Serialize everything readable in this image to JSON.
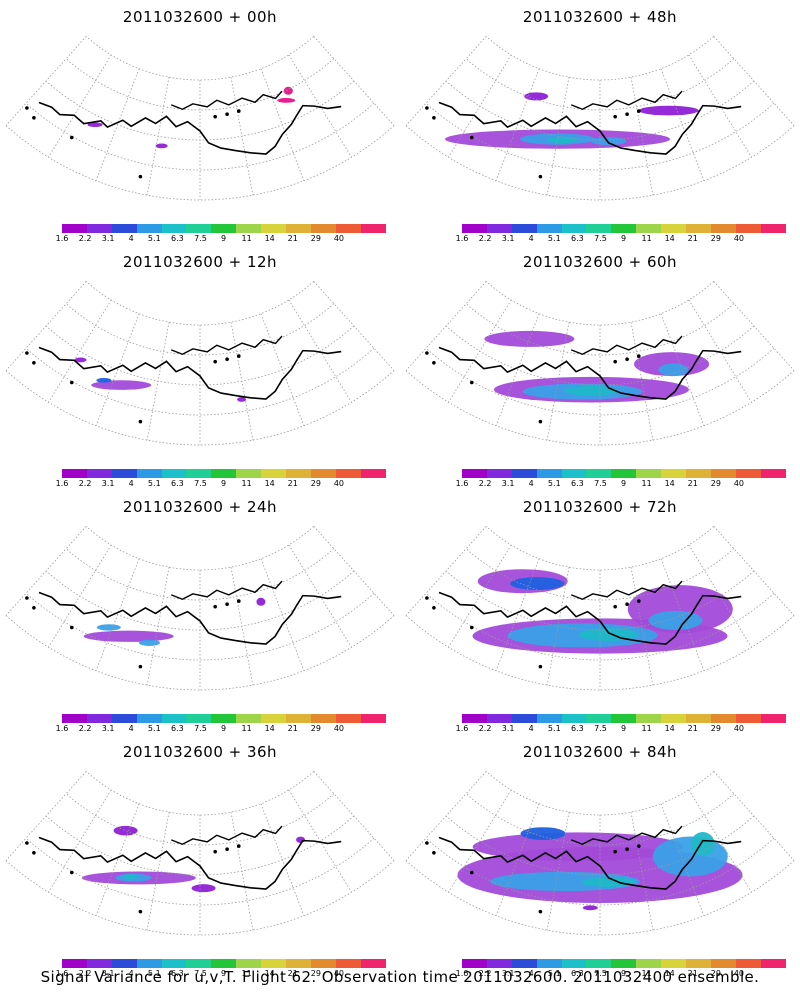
{
  "panels": [
    {
      "title": "2011032600 + 00h",
      "blobs": [
        [
          -0.62,
          0.15,
          0.05,
          0.03,
          "#8f1fd6"
        ],
        [
          -0.22,
          0.15,
          0.04,
          0.03,
          "#8f1fd6"
        ],
        [
          0.58,
          -0.35,
          0.06,
          0.03,
          "#e8108a"
        ],
        [
          0.62,
          -0.48,
          0.03,
          0.05,
          "#e8108a"
        ]
      ]
    },
    {
      "title": "2011032600 + 12h",
      "blobs": [
        [
          -0.45,
          0.22,
          0.2,
          0.06,
          "#a24ad9"
        ],
        [
          -0.55,
          0.25,
          0.05,
          0.03,
          "#1f60e0"
        ],
        [
          -0.72,
          0.12,
          0.04,
          0.03,
          "#8f1fd6"
        ],
        [
          0.23,
          0.3,
          0.03,
          0.03,
          "#8f1fd6"
        ]
      ]
    },
    {
      "title": "2011032600 + 24h",
      "blobs": [
        [
          -0.4,
          0.28,
          0.3,
          0.07,
          "#a24ad9"
        ],
        [
          -0.52,
          0.25,
          0.08,
          0.04,
          "#3aa0e8"
        ],
        [
          -0.28,
          0.3,
          0.07,
          0.04,
          "#3aa0e8"
        ],
        [
          0.4,
          -0.32,
          0.03,
          0.05,
          "#8f1fd6"
        ]
      ]
    },
    {
      "title": "2011032600 + 36h",
      "blobs": [
        [
          -0.35,
          0.18,
          0.38,
          0.08,
          "#a24ad9"
        ],
        [
          -0.38,
          0.2,
          0.12,
          0.05,
          "#3aa0e8"
        ],
        [
          -0.4,
          0.2,
          0.05,
          0.03,
          "#20b8c8"
        ],
        [
          -0.52,
          -0.5,
          0.08,
          0.06,
          "#8f1fd6"
        ],
        [
          0.65,
          -0.18,
          0.03,
          0.04,
          "#8f1fd6"
        ],
        [
          0.02,
          0.22,
          0.08,
          0.05,
          "#8f1fd6"
        ]
      ]
    },
    {
      "title": "2011032600 + 48h",
      "blobs": [
        [
          -0.25,
          0.05,
          0.75,
          0.12,
          "#a24ad9"
        ],
        [
          -0.25,
          0.05,
          0.25,
          0.07,
          "#3aa0e8"
        ],
        [
          -0.22,
          0.05,
          0.1,
          0.04,
          "#20b8c8"
        ],
        [
          0.05,
          0.02,
          0.12,
          0.05,
          "#3aa0e8"
        ],
        [
          -0.45,
          -0.55,
          0.08,
          0.05,
          "#8f1fd6"
        ],
        [
          0.45,
          -0.3,
          0.2,
          0.06,
          "#8f1fd6"
        ]
      ]
    },
    {
      "title": "2011032600 + 60h",
      "blobs": [
        [
          -0.05,
          0.08,
          0.65,
          0.16,
          "#a24ad9"
        ],
        [
          -0.1,
          0.12,
          0.4,
          0.1,
          "#3aa0e8"
        ],
        [
          -0.05,
          0.1,
          0.18,
          0.06,
          "#20b8c8"
        ],
        [
          -0.5,
          -0.55,
          0.3,
          0.1,
          "#a24ad9"
        ],
        [
          0.45,
          -0.15,
          0.25,
          0.15,
          "#a24ad9"
        ],
        [
          0.45,
          -0.05,
          0.1,
          0.08,
          "#3aa0e8"
        ]
      ]
    },
    {
      "title": "2011032600 + 72h",
      "blobs": [
        [
          0.0,
          0.1,
          0.85,
          0.22,
          "#a24ad9"
        ],
        [
          -0.1,
          0.1,
          0.5,
          0.15,
          "#3aa0e8"
        ],
        [
          0.05,
          0.08,
          0.2,
          0.08,
          "#20b8c8"
        ],
        [
          -0.55,
          -0.55,
          0.3,
          0.15,
          "#a24ad9"
        ],
        [
          -0.45,
          -0.6,
          0.18,
          0.08,
          "#1f60e0"
        ],
        [
          0.5,
          -0.1,
          0.35,
          0.3,
          "#a24ad9"
        ],
        [
          0.45,
          0.05,
          0.18,
          0.12,
          "#3aa0e8"
        ]
      ]
    },
    {
      "title": "2011032600 + 84h",
      "blobs": [
        [
          0.0,
          0.0,
          0.95,
          0.35,
          "#a24ad9"
        ],
        [
          -0.15,
          -0.45,
          0.7,
          0.18,
          "#a24ad9"
        ],
        [
          -0.2,
          0.15,
          0.5,
          0.12,
          "#3aa0e8"
        ],
        [
          0.05,
          0.12,
          0.18,
          0.06,
          "#20b8c8"
        ],
        [
          0.55,
          0.0,
          0.25,
          0.25,
          "#3aa0e8"
        ],
        [
          0.65,
          -0.1,
          0.08,
          0.15,
          "#20b8c8"
        ],
        [
          -0.4,
          -0.55,
          0.15,
          0.08,
          "#1f60e0"
        ],
        [
          -0.05,
          0.55,
          0.05,
          0.03,
          "#8f1fd6"
        ]
      ]
    }
  ],
  "colorbar": {
    "colors": [
      "#a000c8",
      "#8229e0",
      "#2b4bd8",
      "#2d9ae6",
      "#1cc0c8",
      "#1fcf96",
      "#22c638",
      "#9ed44a",
      "#d6d43a",
      "#dfb237",
      "#e48a2e",
      "#ee5a36",
      "#f0246c"
    ],
    "labels": [
      "1.6",
      "2.2",
      "3.1",
      "4",
      "5.1",
      "6.3",
      "7.5",
      "9",
      "11",
      "14",
      "21",
      "29",
      "40"
    ]
  },
  "footer": "Signal Variance for u,v,T. Flight 62. Observation time 2011032600. 2011032400 ensemble."
}
